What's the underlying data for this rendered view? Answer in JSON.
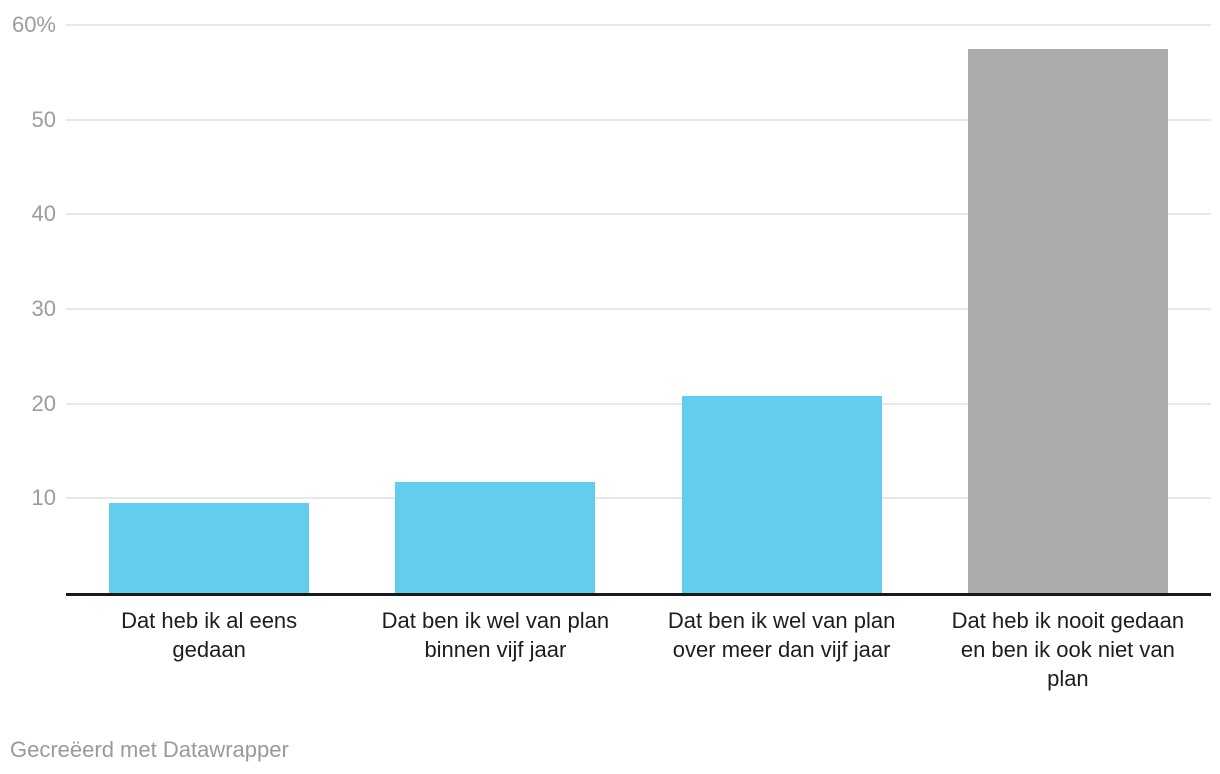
{
  "footer": {
    "text": "Gecreëerd met Datawrapper"
  },
  "colors": {
    "bar_blue": "#63cdee",
    "bar_gray": "#ababab",
    "gridline": "#e8e8e8",
    "axis": "#1a1a1a",
    "tick_label": "#9c9c9c",
    "category_label": "#1d1d1d",
    "footer_text": "#9a9a9a",
    "background": "#ffffff"
  },
  "chart_data": {
    "type": "bar",
    "title": "",
    "xlabel": "",
    "ylabel": "",
    "categories": [
      "Dat heb ik al eens gedaan",
      "Dat ben ik wel van plan binnen vijf jaar",
      "Dat ben ik wel van plan over meer dan vijf jaar",
      "Dat heb ik nooit gedaan en ben ik ook niet van plan"
    ],
    "category_lines": [
      [
        "Dat heb ik al eens",
        "gedaan"
      ],
      [
        "Dat ben ik wel van plan",
        "binnen vijf jaar"
      ],
      [
        "Dat ben ik wel van plan",
        "over meer dan vijf jaar"
      ],
      [
        "Dat heb ik nooit gedaan",
        "en ben ik ook niet van",
        "plan"
      ]
    ],
    "values": [
      9.5,
      11.7,
      20.8,
      57.5
    ],
    "unit": "%",
    "series_colors": [
      "#63cdee",
      "#63cdee",
      "#63cdee",
      "#ababab"
    ],
    "ylim": [
      0,
      60
    ],
    "yticks": [
      10,
      20,
      30,
      40,
      50,
      60
    ],
    "ytick_labels": [
      "10",
      "20",
      "30",
      "40",
      "50",
      "60%"
    ],
    "grid": true,
    "legend": "none"
  }
}
